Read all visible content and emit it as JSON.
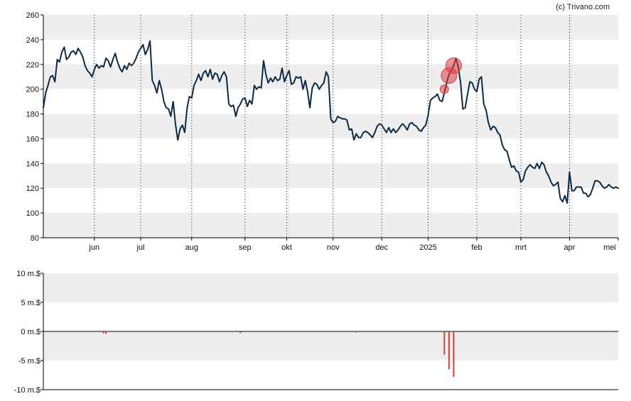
{
  "credit": "(c) Trivano.com",
  "chart_data": [
    {
      "type": "line",
      "ylim": [
        80,
        260
      ],
      "y_ticks": [
        "260",
        "240",
        "220",
        "200",
        "180",
        "160",
        "140",
        "120",
        "100",
        "80"
      ],
      "y_tick_values": [
        260,
        240,
        220,
        200,
        180,
        160,
        140,
        120,
        100,
        80
      ],
      "x_domain": [
        0,
        248
      ],
      "x_ticks": [
        {
          "label": "jun",
          "x": 22
        },
        {
          "label": "jul",
          "x": 42
        },
        {
          "label": "aug",
          "x": 64
        },
        {
          "label": "sep",
          "x": 87
        },
        {
          "label": "okt",
          "x": 105
        },
        {
          "label": "nov",
          "x": 125
        },
        {
          "label": "dec",
          "x": 146
        },
        {
          "label": "2025",
          "x": 166
        },
        {
          "label": "feb",
          "x": 187
        },
        {
          "label": "mrt",
          "x": 206
        },
        {
          "label": "apr",
          "x": 227
        },
        {
          "label": "mei",
          "x": 248
        }
      ],
      "band_colors": [
        "#eeeeee",
        "#ffffff"
      ],
      "line_color": "#0d2a45",
      "series": [
        {
          "points": [
            [
              0,
              185
            ],
            [
              1,
              197
            ],
            [
              2,
              203
            ],
            [
              3,
              210
            ],
            [
              4,
              211
            ],
            [
              5,
              206
            ],
            [
              6,
              224
            ],
            [
              7,
              222
            ],
            [
              8,
              230
            ],
            [
              9,
              234
            ],
            [
              10,
              224
            ],
            [
              11,
              226
            ],
            [
              12,
              230
            ],
            [
              13,
              231
            ],
            [
              14,
              228
            ],
            [
              15,
              233
            ],
            [
              16,
              230
            ],
            [
              17,
              226
            ],
            [
              18,
              219
            ],
            [
              19,
              215
            ],
            [
              20,
              213
            ],
            [
              21,
              210
            ],
            [
              22,
              216
            ],
            [
              23,
              220
            ],
            [
              24,
              217
            ],
            [
              25,
              219
            ],
            [
              26,
              218
            ],
            [
              27,
              225
            ],
            [
              28,
              223
            ],
            [
              29,
              218
            ],
            [
              30,
              224
            ],
            [
              31,
              229
            ],
            [
              32,
              222
            ],
            [
              33,
              217
            ],
            [
              34,
              214
            ],
            [
              35,
              219
            ],
            [
              36,
              216
            ],
            [
              37,
              221
            ],
            [
              38,
              219
            ],
            [
              39,
              221
            ],
            [
              40,
              225
            ],
            [
              41,
              230
            ],
            [
              42,
              233
            ],
            [
              43,
              236
            ],
            [
              44,
              228
            ],
            [
              45,
              232
            ],
            [
              46,
              239
            ],
            [
              47,
              207
            ],
            [
              48,
              203
            ],
            [
              49,
              197
            ],
            [
              50,
              207
            ],
            [
              51,
              200
            ],
            [
              52,
              190
            ],
            [
              53,
              185
            ],
            [
              54,
              184
            ],
            [
              55,
              178
            ],
            [
              56,
              190
            ],
            [
              57,
              172
            ],
            [
              58,
              159
            ],
            [
              59,
              168
            ],
            [
              60,
              171
            ],
            [
              61,
              165
            ],
            [
              62,
              185
            ],
            [
              63,
              194
            ],
            [
              64,
              193
            ],
            [
              65,
              203
            ],
            [
              66,
              207
            ],
            [
              67,
              212
            ],
            [
              68,
              207
            ],
            [
              69,
              213
            ],
            [
              70,
              215
            ],
            [
              71,
              210
            ],
            [
              72,
              216
            ],
            [
              73,
              208
            ],
            [
              74,
              213
            ],
            [
              75,
              212
            ],
            [
              76,
              206
            ],
            [
              77,
              211
            ],
            [
              78,
              214
            ],
            [
              79,
              210
            ],
            [
              80,
              188
            ],
            [
              81,
              186
            ],
            [
              82,
              187
            ],
            [
              83,
              178
            ],
            [
              84,
              185
            ],
            [
              85,
              188
            ],
            [
              86,
              192
            ],
            [
              87,
              193
            ],
            [
              88,
              186
            ],
            [
              89,
              191
            ],
            [
              90,
              188
            ],
            [
              91,
              203
            ],
            [
              92,
              200
            ],
            [
              93,
              202
            ],
            [
              94,
              201
            ],
            [
              95,
              223
            ],
            [
              96,
              212
            ],
            [
              97,
              205
            ],
            [
              98,
              209
            ],
            [
              99,
              206
            ],
            [
              100,
              210
            ],
            [
              101,
              207
            ],
            [
              102,
              208
            ],
            [
              103,
              217
            ],
            [
              104,
              206
            ],
            [
              105,
              211
            ],
            [
              106,
              215
            ],
            [
              107,
              204
            ],
            [
              108,
              205
            ],
            [
              109,
              210
            ],
            [
              110,
              209
            ],
            [
              111,
              210
            ],
            [
              112,
              200
            ],
            [
              113,
              207
            ],
            [
              114,
              198
            ],
            [
              115,
              185
            ],
            [
              116,
              201
            ],
            [
              117,
              205
            ],
            [
              118,
              204
            ],
            [
              119,
              200
            ],
            [
              120,
              203
            ],
            [
              121,
              205
            ],
            [
              122,
              214
            ],
            [
              123,
              210
            ],
            [
              124,
              176
            ],
            [
              125,
              173
            ],
            [
              126,
              174
            ],
            [
              127,
              178
            ],
            [
              128,
              177
            ],
            [
              129,
              176
            ],
            [
              130,
              176
            ],
            [
              131,
              175
            ],
            [
              132,
              167
            ],
            [
              133,
              168
            ],
            [
              134,
              159
            ],
            [
              135,
              164
            ],
            [
              136,
              161
            ],
            [
              137,
              161
            ],
            [
              138,
              165
            ],
            [
              139,
              166
            ],
            [
              140,
              165
            ],
            [
              141,
              163
            ],
            [
              142,
              161
            ],
            [
              143,
              165
            ],
            [
              144,
              170
            ],
            [
              145,
              172
            ],
            [
              146,
              171
            ],
            [
              147,
              168
            ],
            [
              148,
              165
            ],
            [
              149,
              169
            ],
            [
              150,
              165
            ],
            [
              151,
              168
            ],
            [
              152,
              165
            ],
            [
              153,
              167
            ],
            [
              154,
              170
            ],
            [
              155,
              172
            ],
            [
              156,
              170
            ],
            [
              157,
              167
            ],
            [
              158,
              172
            ],
            [
              159,
              173
            ],
            [
              160,
              171
            ],
            [
              161,
              170
            ],
            [
              162,
              167
            ],
            [
              163,
              166
            ],
            [
              164,
              169
            ],
            [
              165,
              171
            ],
            [
              166,
              179
            ],
            [
              167,
              191
            ],
            [
              168,
              193
            ],
            [
              169,
              194
            ],
            [
              170,
              196
            ],
            [
              171,
              191
            ],
            [
              172,
              190
            ],
            [
              173,
              197
            ],
            [
              174,
              205
            ],
            [
              175,
              212
            ],
            [
              176,
              215
            ],
            [
              177,
              219
            ],
            [
              178,
              225
            ],
            [
              179,
              218
            ],
            [
              180,
              205
            ],
            [
              181,
              184
            ],
            [
              182,
              185
            ],
            [
              183,
              196
            ],
            [
              184,
              206
            ],
            [
              185,
              205
            ],
            [
              186,
              200
            ],
            [
              187,
              198
            ],
            [
              188,
              208
            ],
            [
              189,
              210
            ],
            [
              190,
              188
            ],
            [
              191,
              183
            ],
            [
              192,
              173
            ],
            [
              193,
              167
            ],
            [
              194,
              170
            ],
            [
              195,
              169
            ],
            [
              196,
              165
            ],
            [
              197,
              163
            ],
            [
              198,
              155
            ],
            [
              199,
              151
            ],
            [
              200,
              150
            ],
            [
              201,
              143
            ],
            [
              202,
              137
            ],
            [
              203,
              138
            ],
            [
              204,
              134
            ],
            [
              205,
              133
            ],
            [
              206,
              125
            ],
            [
              207,
              127
            ],
            [
              208,
              134
            ],
            [
              209,
              137
            ],
            [
              210,
              139
            ],
            [
              211,
              137
            ],
            [
              212,
              136
            ],
            [
              213,
              140
            ],
            [
              214,
              136
            ],
            [
              215,
              141
            ],
            [
              216,
              139
            ],
            [
              217,
              133
            ],
            [
              218,
              130
            ],
            [
              219,
              125
            ],
            [
              220,
              122
            ],
            [
              221,
              123
            ],
            [
              222,
              125
            ],
            [
              223,
              112
            ],
            [
              224,
              109
            ],
            [
              225,
              114
            ],
            [
              226,
              108
            ],
            [
              227,
              133
            ],
            [
              228,
              118
            ],
            [
              229,
              118
            ],
            [
              230,
              121
            ],
            [
              231,
              121
            ],
            [
              232,
              121
            ],
            [
              233,
              116
            ],
            [
              234,
              116
            ],
            [
              235,
              113
            ],
            [
              236,
              115
            ],
            [
              237,
              120
            ],
            [
              238,
              126
            ],
            [
              239,
              126
            ],
            [
              240,
              125
            ],
            [
              241,
              122
            ],
            [
              242,
              120
            ],
            [
              243,
              121
            ],
            [
              244,
              123
            ],
            [
              245,
              121
            ],
            [
              246,
              120
            ],
            [
              247,
              121
            ],
            [
              248,
              120
            ]
          ]
        }
      ],
      "markers": [
        {
          "x": 173,
          "y": 200,
          "size": "small"
        },
        {
          "x": 175,
          "y": 211,
          "size": "large"
        },
        {
          "x": 177,
          "y": 219,
          "size": "large"
        }
      ],
      "marker_color": "#e03a3e"
    },
    {
      "type": "bar",
      "ylim": [
        -10,
        10
      ],
      "y_ticks": [
        "10 m.$",
        "5 m.$",
        "0 m.$",
        "-5 m.$",
        "-10 m.$"
      ],
      "y_tick_values": [
        10,
        5,
        0,
        -5,
        -10
      ],
      "x_domain": [
        0,
        248
      ],
      "band_colors": [
        "#eeeeee",
        "#ffffff"
      ],
      "bar_color": "#e03a3e",
      "bars": [
        {
          "x": 26,
          "value": -0.3
        },
        {
          "x": 27,
          "value": -0.4
        },
        {
          "x": 85,
          "value": -0.3
        },
        {
          "x": 135,
          "value": -0.2
        },
        {
          "x": 173,
          "value": -4.0
        },
        {
          "x": 175,
          "value": -6.5
        },
        {
          "x": 177,
          "value": -7.8
        }
      ]
    }
  ]
}
